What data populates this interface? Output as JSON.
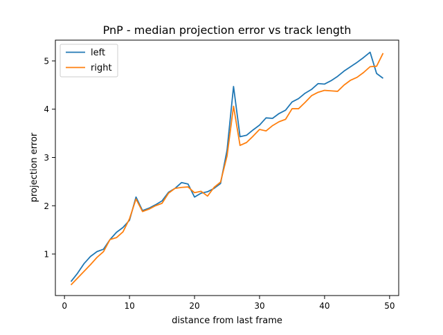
{
  "chart_data": {
    "type": "line",
    "title": "PnP - median projection error vs track length",
    "xlabel": "distance from last frame",
    "ylabel": "projection error",
    "xlim": [
      -1.4,
      51.4
    ],
    "ylim": [
      0.14,
      5.43
    ],
    "xticks": [
      0,
      10,
      20,
      30,
      40,
      50
    ],
    "yticks": [
      1,
      2,
      3,
      4,
      5
    ],
    "grid": false,
    "legend_position": "top-left",
    "x": [
      1,
      2,
      3,
      4,
      5,
      6,
      7,
      8,
      9,
      10,
      11,
      12,
      13,
      14,
      15,
      16,
      17,
      18,
      19,
      20,
      21,
      22,
      23,
      24,
      25,
      26,
      27,
      28,
      29,
      30,
      31,
      32,
      33,
      34,
      35,
      36,
      37,
      38,
      39,
      40,
      41,
      42,
      43,
      44,
      45,
      46,
      47,
      48,
      49
    ],
    "series": [
      {
        "name": "left",
        "color": "#1f77b4",
        "values": [
          0.43,
          0.6,
          0.8,
          0.95,
          1.05,
          1.1,
          1.3,
          1.45,
          1.55,
          1.7,
          2.18,
          1.9,
          1.95,
          2.02,
          2.1,
          2.28,
          2.36,
          2.48,
          2.45,
          2.18,
          2.26,
          2.29,
          2.36,
          2.46,
          3.15,
          4.47,
          3.43,
          3.46,
          3.57,
          3.67,
          3.82,
          3.81,
          3.91,
          3.98,
          4.15,
          4.22,
          4.33,
          4.41,
          4.53,
          4.52,
          4.59,
          4.68,
          4.79,
          4.88,
          4.97,
          5.07,
          5.18,
          4.74,
          4.64
        ]
      },
      {
        "name": "right",
        "color": "#ff7f0e",
        "values": [
          0.36,
          0.5,
          0.64,
          0.78,
          0.93,
          1.05,
          1.3,
          1.34,
          1.46,
          1.73,
          2.14,
          1.88,
          1.93,
          2.0,
          2.05,
          2.26,
          2.36,
          2.38,
          2.39,
          2.27,
          2.3,
          2.2,
          2.38,
          2.49,
          3.03,
          4.06,
          3.25,
          3.31,
          3.44,
          3.58,
          3.55,
          3.66,
          3.74,
          3.79,
          4.01,
          4.01,
          4.14,
          4.28,
          4.35,
          4.39,
          4.38,
          4.37,
          4.5,
          4.6,
          4.66,
          4.76,
          4.88,
          4.89,
          5.16
        ]
      }
    ]
  }
}
